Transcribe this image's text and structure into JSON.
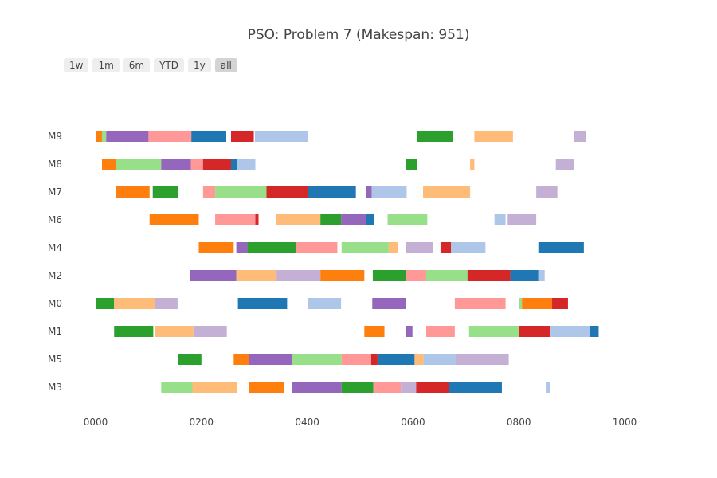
{
  "title": "PSO: Problem 7 (Makespan: 951)",
  "range_buttons": [
    {
      "label": "1w",
      "active": false
    },
    {
      "label": "1m",
      "active": false
    },
    {
      "label": "6m",
      "active": false
    },
    {
      "label": "YTD",
      "active": false
    },
    {
      "label": "1y",
      "active": false
    },
    {
      "label": "all",
      "active": true
    }
  ],
  "chart_data": {
    "type": "gantt",
    "title": "PSO: Problem 7 (Makespan: 951)",
    "xlim": [
      0,
      1000
    ],
    "x_ticks": [
      0,
      200,
      400,
      600,
      800,
      1000
    ],
    "x_tick_labels": [
      "0000",
      "0200",
      "0400",
      "0600",
      "0800",
      "1000"
    ],
    "machines": [
      "M9",
      "M8",
      "M7",
      "M6",
      "M4",
      "M2",
      "M0",
      "M1",
      "M5",
      "M3"
    ],
    "colors": {
      "orange": "#ff7f0e",
      "lightgreen": "#98df8a",
      "purple": "#9467bd",
      "pink": "#ff9896",
      "blue": "#1f77b4",
      "red": "#d62728",
      "lightblue": "#aec7e8",
      "green": "#2ca02c",
      "peach": "#ffbb78",
      "lavender": "#c5b0d5"
    },
    "tasks": [
      {
        "machine": "M9",
        "start": 0,
        "end": 12,
        "color": "orange"
      },
      {
        "machine": "M9",
        "start": 12,
        "end": 20,
        "color": "lightgreen"
      },
      {
        "machine": "M9",
        "start": 20,
        "end": 100,
        "color": "purple"
      },
      {
        "machine": "M9",
        "start": 100,
        "end": 181,
        "color": "pink"
      },
      {
        "machine": "M9",
        "start": 181,
        "end": 247,
        "color": "blue"
      },
      {
        "machine": "M9",
        "start": 256,
        "end": 299,
        "color": "red"
      },
      {
        "machine": "M9",
        "start": 301,
        "end": 401,
        "color": "lightblue"
      },
      {
        "machine": "M9",
        "start": 608,
        "end": 675,
        "color": "green"
      },
      {
        "machine": "M9",
        "start": 716,
        "end": 789,
        "color": "peach"
      },
      {
        "machine": "M9",
        "start": 904,
        "end": 927,
        "color": "lavender"
      },
      {
        "machine": "M8",
        "start": 12,
        "end": 39,
        "color": "orange"
      },
      {
        "machine": "M8",
        "start": 39,
        "end": 124,
        "color": "lightgreen"
      },
      {
        "machine": "M8",
        "start": 124,
        "end": 180,
        "color": "purple"
      },
      {
        "machine": "M8",
        "start": 180,
        "end": 203,
        "color": "pink"
      },
      {
        "machine": "M8",
        "start": 203,
        "end": 256,
        "color": "red"
      },
      {
        "machine": "M8",
        "start": 256,
        "end": 268,
        "color": "blue"
      },
      {
        "machine": "M8",
        "start": 268,
        "end": 302,
        "color": "lightblue"
      },
      {
        "machine": "M8",
        "start": 587,
        "end": 608,
        "color": "green"
      },
      {
        "machine": "M8",
        "start": 708,
        "end": 716,
        "color": "peach"
      },
      {
        "machine": "M8",
        "start": 870,
        "end": 904,
        "color": "lavender"
      },
      {
        "machine": "M7",
        "start": 39,
        "end": 102,
        "color": "orange"
      },
      {
        "machine": "M7",
        "start": 108,
        "end": 156,
        "color": "green"
      },
      {
        "machine": "M7",
        "start": 203,
        "end": 226,
        "color": "pink"
      },
      {
        "machine": "M7",
        "start": 226,
        "end": 323,
        "color": "lightgreen"
      },
      {
        "machine": "M7",
        "start": 323,
        "end": 401,
        "color": "red"
      },
      {
        "machine": "M7",
        "start": 401,
        "end": 492,
        "color": "blue"
      },
      {
        "machine": "M7",
        "start": 512,
        "end": 522,
        "color": "purple"
      },
      {
        "machine": "M7",
        "start": 522,
        "end": 588,
        "color": "lightblue"
      },
      {
        "machine": "M7",
        "start": 619,
        "end": 708,
        "color": "peach"
      },
      {
        "machine": "M7",
        "start": 833,
        "end": 873,
        "color": "lavender"
      },
      {
        "machine": "M6",
        "start": 102,
        "end": 195,
        "color": "orange"
      },
      {
        "machine": "M6",
        "start": 226,
        "end": 302,
        "color": "pink"
      },
      {
        "machine": "M6",
        "start": 302,
        "end": 308,
        "color": "red"
      },
      {
        "machine": "M6",
        "start": 341,
        "end": 425,
        "color": "peach"
      },
      {
        "machine": "M6",
        "start": 425,
        "end": 464,
        "color": "green"
      },
      {
        "machine": "M6",
        "start": 464,
        "end": 512,
        "color": "purple"
      },
      {
        "machine": "M6",
        "start": 512,
        "end": 526,
        "color": "blue"
      },
      {
        "machine": "M6",
        "start": 552,
        "end": 627,
        "color": "lightgreen"
      },
      {
        "machine": "M6",
        "start": 754,
        "end": 775,
        "color": "lightblue"
      },
      {
        "machine": "M6",
        "start": 779,
        "end": 833,
        "color": "lavender"
      },
      {
        "machine": "M4",
        "start": 195,
        "end": 261,
        "color": "orange"
      },
      {
        "machine": "M4",
        "start": 266,
        "end": 287,
        "color": "purple"
      },
      {
        "machine": "M4",
        "start": 287,
        "end": 379,
        "color": "green"
      },
      {
        "machine": "M4",
        "start": 379,
        "end": 457,
        "color": "pink"
      },
      {
        "machine": "M4",
        "start": 465,
        "end": 554,
        "color": "lightgreen"
      },
      {
        "machine": "M4",
        "start": 554,
        "end": 572,
        "color": "peach"
      },
      {
        "machine": "M4",
        "start": 586,
        "end": 638,
        "color": "lavender"
      },
      {
        "machine": "M4",
        "start": 652,
        "end": 672,
        "color": "red"
      },
      {
        "machine": "M4",
        "start": 672,
        "end": 737,
        "color": "lightblue"
      },
      {
        "machine": "M4",
        "start": 837,
        "end": 923,
        "color": "blue"
      },
      {
        "machine": "M2",
        "start": 179,
        "end": 266,
        "color": "purple"
      },
      {
        "machine": "M2",
        "start": 266,
        "end": 342,
        "color": "peach"
      },
      {
        "machine": "M2",
        "start": 342,
        "end": 425,
        "color": "lavender"
      },
      {
        "machine": "M2",
        "start": 425,
        "end": 508,
        "color": "orange"
      },
      {
        "machine": "M2",
        "start": 524,
        "end": 586,
        "color": "green"
      },
      {
        "machine": "M2",
        "start": 586,
        "end": 625,
        "color": "pink"
      },
      {
        "machine": "M2",
        "start": 625,
        "end": 703,
        "color": "lightgreen"
      },
      {
        "machine": "M2",
        "start": 703,
        "end": 784,
        "color": "red"
      },
      {
        "machine": "M2",
        "start": 784,
        "end": 837,
        "color": "blue"
      },
      {
        "machine": "M2",
        "start": 837,
        "end": 849,
        "color": "lightblue"
      },
      {
        "machine": "M0",
        "start": 0,
        "end": 35,
        "color": "green"
      },
      {
        "machine": "M0",
        "start": 35,
        "end": 112,
        "color": "peach"
      },
      {
        "machine": "M0",
        "start": 112,
        "end": 155,
        "color": "lavender"
      },
      {
        "machine": "M0",
        "start": 269,
        "end": 362,
        "color": "blue"
      },
      {
        "machine": "M0",
        "start": 401,
        "end": 464,
        "color": "lightblue"
      },
      {
        "machine": "M0",
        "start": 523,
        "end": 586,
        "color": "purple"
      },
      {
        "machine": "M0",
        "start": 679,
        "end": 775,
        "color": "pink"
      },
      {
        "machine": "M0",
        "start": 800,
        "end": 806,
        "color": "lightgreen"
      },
      {
        "machine": "M0",
        "start": 806,
        "end": 863,
        "color": "orange"
      },
      {
        "machine": "M0",
        "start": 863,
        "end": 893,
        "color": "red"
      },
      {
        "machine": "M1",
        "start": 35,
        "end": 109,
        "color": "green"
      },
      {
        "machine": "M1",
        "start": 112,
        "end": 185,
        "color": "peach"
      },
      {
        "machine": "M1",
        "start": 185,
        "end": 248,
        "color": "lavender"
      },
      {
        "machine": "M1",
        "start": 508,
        "end": 546,
        "color": "orange"
      },
      {
        "machine": "M1",
        "start": 586,
        "end": 599,
        "color": "purple"
      },
      {
        "machine": "M1",
        "start": 625,
        "end": 679,
        "color": "pink"
      },
      {
        "machine": "M1",
        "start": 706,
        "end": 800,
        "color": "lightgreen"
      },
      {
        "machine": "M1",
        "start": 800,
        "end": 860,
        "color": "red"
      },
      {
        "machine": "M1",
        "start": 860,
        "end": 935,
        "color": "lightblue"
      },
      {
        "machine": "M1",
        "start": 935,
        "end": 951,
        "color": "blue"
      },
      {
        "machine": "M5",
        "start": 156,
        "end": 200,
        "color": "green"
      },
      {
        "machine": "M5",
        "start": 261,
        "end": 290,
        "color": "orange"
      },
      {
        "machine": "M5",
        "start": 290,
        "end": 372,
        "color": "purple"
      },
      {
        "machine": "M5",
        "start": 372,
        "end": 465,
        "color": "lightgreen"
      },
      {
        "machine": "M5",
        "start": 465,
        "end": 521,
        "color": "pink"
      },
      {
        "machine": "M5",
        "start": 521,
        "end": 533,
        "color": "red"
      },
      {
        "machine": "M5",
        "start": 533,
        "end": 603,
        "color": "blue"
      },
      {
        "machine": "M5",
        "start": 603,
        "end": 620,
        "color": "peach"
      },
      {
        "machine": "M5",
        "start": 620,
        "end": 681,
        "color": "lightblue"
      },
      {
        "machine": "M5",
        "start": 681,
        "end": 781,
        "color": "lavender"
      },
      {
        "machine": "M3",
        "start": 124,
        "end": 183,
        "color": "lightgreen"
      },
      {
        "machine": "M3",
        "start": 183,
        "end": 267,
        "color": "peach"
      },
      {
        "machine": "M3",
        "start": 290,
        "end": 357,
        "color": "orange"
      },
      {
        "machine": "M3",
        "start": 372,
        "end": 465,
        "color": "purple"
      },
      {
        "machine": "M3",
        "start": 465,
        "end": 525,
        "color": "green"
      },
      {
        "machine": "M3",
        "start": 525,
        "end": 577,
        "color": "pink"
      },
      {
        "machine": "M3",
        "start": 577,
        "end": 606,
        "color": "lavender"
      },
      {
        "machine": "M3",
        "start": 606,
        "end": 668,
        "color": "red"
      },
      {
        "machine": "M3",
        "start": 668,
        "end": 768,
        "color": "blue"
      },
      {
        "machine": "M3",
        "start": 851,
        "end": 860,
        "color": "lightblue"
      }
    ]
  }
}
